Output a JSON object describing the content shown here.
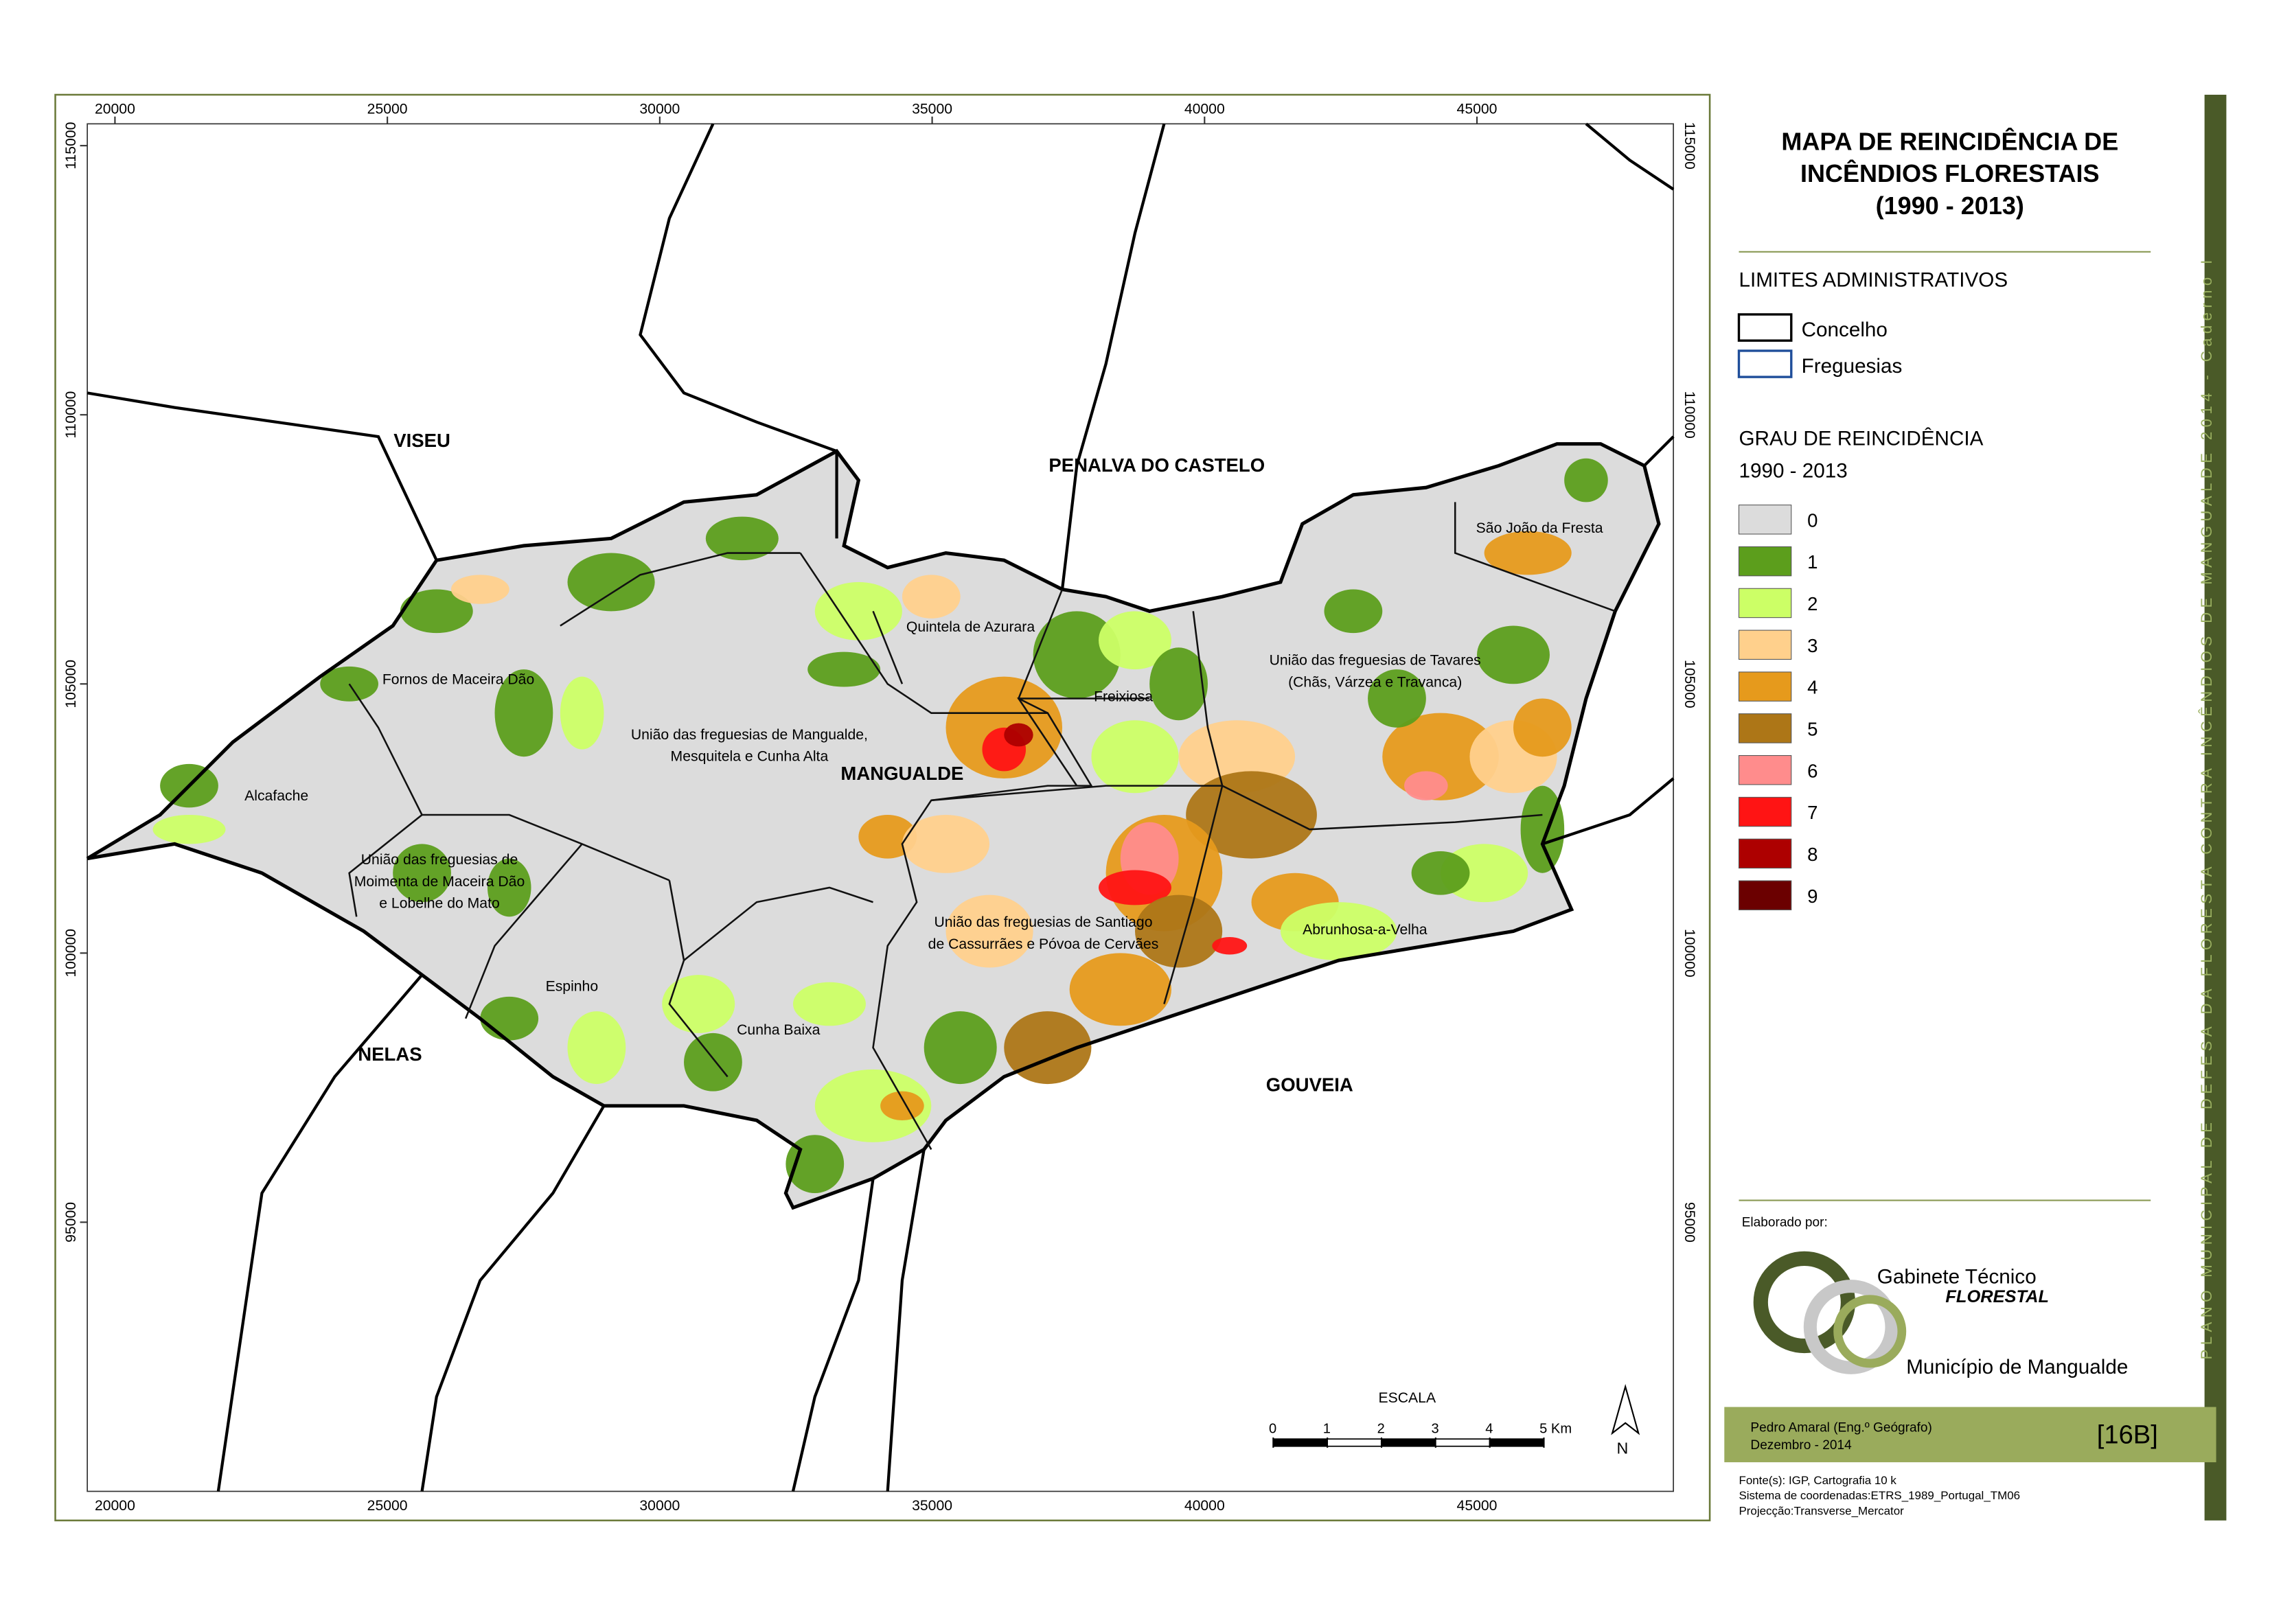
{
  "map": {
    "title": [
      "MAPA DE REINCIDÊNCIA DE",
      "INCÊNDIOS FLORESTAIS",
      "(1990 - 2013)"
    ],
    "x_ticks": [
      20000,
      25000,
      30000,
      35000,
      40000,
      45000
    ],
    "y_ticks": [
      115000,
      110000,
      105000,
      100000,
      95000
    ],
    "regions": [
      "VISEU",
      "PENALVA DO CASTELO",
      "NELAS",
      "GOUVEIA",
      "MANGUALDE"
    ],
    "freguesias": [
      [
        "Fornos de Maceira Dão"
      ],
      [
        "União das freguesias de Mangualde,",
        "Mesquitela e Cunha Alta"
      ],
      [
        "Quintela de Azurara"
      ],
      [
        "Freixiosa"
      ],
      [
        "União das freguesias de Tavares",
        "(Chãs, Várzea e Travanca)"
      ],
      [
        "São João da Fresta"
      ],
      [
        "Alcafache"
      ],
      [
        "União das freguesias de",
        "Moimenta de Maceira Dão",
        "e Lobelhe do Mato"
      ],
      [
        "União das freguesias de Santiago",
        "de Cassurrães e Póvoa de Cervães"
      ],
      [
        "Abrunhosa-a-Velha"
      ],
      [
        "Espinho"
      ],
      [
        "Cunha Baixa"
      ]
    ],
    "limits_title": "LIMITES ADMINISTRATIVOS",
    "limits": [
      {
        "label": "Concelho",
        "color": "#000000"
      },
      {
        "label": "Freguesias",
        "color": "#1f4e9a"
      }
    ],
    "grade_title": "GRAU DE REINCIDÊNCIA",
    "grade_period": "1990 - 2013",
    "grades": [
      {
        "value": 0,
        "color": "#dcdcdc"
      },
      {
        "value": 1,
        "color": "#5c9e1c"
      },
      {
        "value": 2,
        "color": "#ccff66"
      },
      {
        "value": 3,
        "color": "#ffd08c"
      },
      {
        "value": 4,
        "color": "#e69a1c"
      },
      {
        "value": 5,
        "color": "#ad7617"
      },
      {
        "value": 6,
        "color": "#ff8c8c"
      },
      {
        "value": 7,
        "color": "#ff1414"
      },
      {
        "value": 8,
        "color": "#ad0000"
      },
      {
        "value": 9,
        "color": "#6b0000"
      }
    ],
    "scale_title": "ESCALA",
    "scale_ticks": [
      0,
      1,
      2,
      3,
      4,
      {
        "value": 5,
        "label": "5 Km"
      }
    ],
    "north": "N",
    "made_by": "Elaborado por:",
    "org": [
      "Gabinete Técnico",
      "FLORESTAL",
      "Município de Mangualde"
    ],
    "author": "Pedro Amaral (Eng.º Geógrafo)",
    "date": "Dezembro - 2014",
    "code": "[16B]",
    "sources": [
      "Fonte(s): IGP, Cartografia 10 k",
      "Sistema de coordenadas:ETRS_1989_Portugal_TM06",
      "Projecção:Transverse_Mercator"
    ],
    "side_text": "PLANO MUNICIPAL DE DEFESA DA FLORESTA CONTRA INCÊNDIOS DE MANGUALDE 2014 - Caderno I"
  }
}
